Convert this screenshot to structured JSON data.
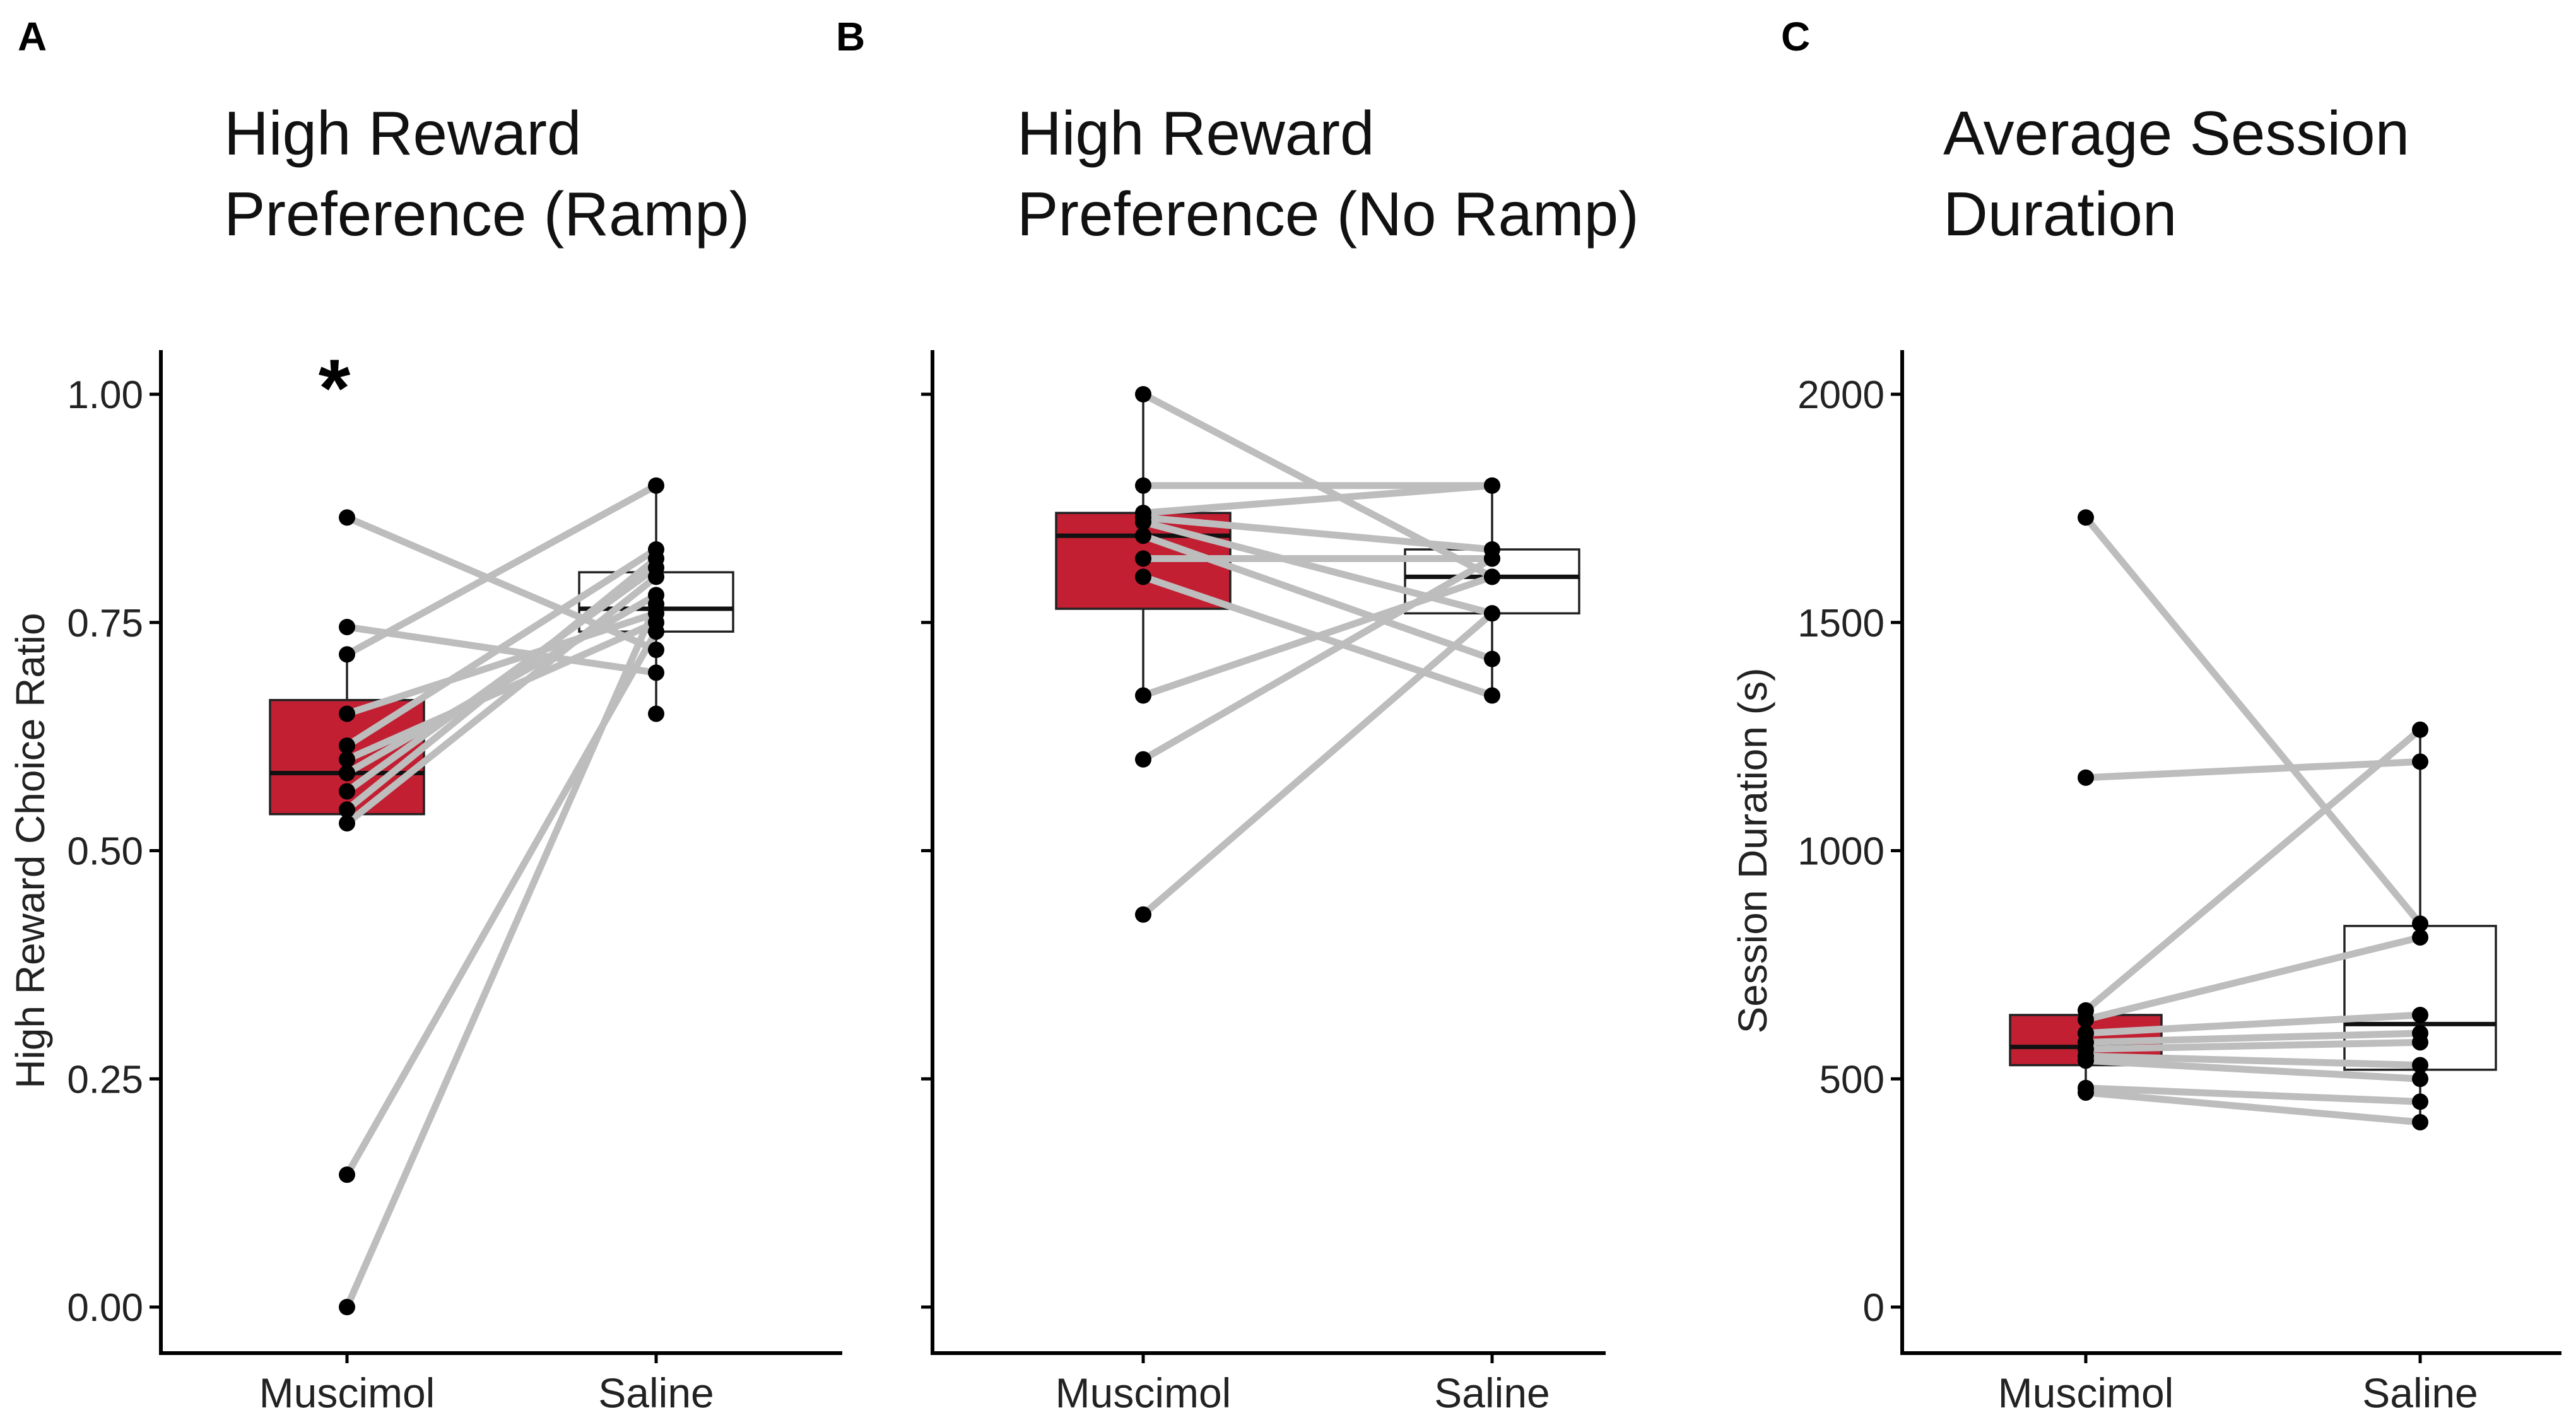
{
  "chart_data": [
    {
      "type": "box",
      "panel_label": "A",
      "title_lines": [
        "High Reward",
        "Preference (Ramp)"
      ],
      "ylabel": "High Reward Choice Ratio",
      "ylim": [
        0.0,
        1.0
      ],
      "yticks": [
        "0.00",
        "0.25",
        "0.50",
        "0.75",
        "1.00"
      ],
      "ytick_values": [
        0.0,
        0.25,
        0.5,
        0.75,
        1.0
      ],
      "categories": [
        "Muscimol",
        "Saline"
      ],
      "significance": "*",
      "boxes": [
        {
          "name": "Muscimol",
          "fill": "#c21f32",
          "q1": 0.54,
          "median": 0.585,
          "q3": 0.665,
          "whisker_low": 0.53,
          "whisker_high": 0.715
        },
        {
          "name": "Saline",
          "fill": "#ffffff",
          "q1": 0.74,
          "median": 0.765,
          "q3": 0.805,
          "whisker_low": 0.65,
          "whisker_high": 0.9
        }
      ],
      "pairs": [
        [
          0.0,
          0.77
        ],
        [
          0.145,
          0.74
        ],
        [
          0.53,
          0.8
        ],
        [
          0.545,
          0.82
        ],
        [
          0.565,
          0.81
        ],
        [
          0.585,
          0.78
        ],
        [
          0.6,
          0.75
        ],
        [
          0.615,
          0.83
        ],
        [
          0.65,
          0.76
        ],
        [
          0.715,
          0.9
        ],
        [
          0.745,
          0.695
        ],
        [
          0.865,
          0.72
        ]
      ],
      "extra_points": [
        {
          "group": "Saline",
          "value": 0.65
        }
      ]
    },
    {
      "type": "box",
      "panel_label": "B",
      "title_lines": [
        "High Reward",
        "Preference (No Ramp)"
      ],
      "ylabel": "",
      "ylim": [
        0.0,
        1.0
      ],
      "yticks": [
        "",
        "",
        "",
        "",
        ""
      ],
      "ytick_values": [
        0.0,
        0.25,
        0.5,
        0.75,
        1.0
      ],
      "categories": [
        "Muscimol",
        "Saline"
      ],
      "significance": "",
      "boxes": [
        {
          "name": "Muscimol",
          "fill": "#c21f32",
          "q1": 0.765,
          "median": 0.845,
          "q3": 0.87,
          "whisker_low": 0.67,
          "whisker_high": 1.0
        },
        {
          "name": "Saline",
          "fill": "#ffffff",
          "q1": 0.76,
          "median": 0.8,
          "q3": 0.83,
          "whisker_low": 0.67,
          "whisker_high": 0.9
        }
      ],
      "pairs": [
        [
          1.0,
          0.8
        ],
        [
          0.9,
          0.9
        ],
        [
          0.865,
          0.83
        ],
        [
          0.86,
          0.76
        ],
        [
          0.845,
          0.71
        ],
        [
          0.82,
          0.82
        ],
        [
          0.8,
          0.67
        ],
        [
          0.67,
          0.8
        ],
        [
          0.6,
          0.82
        ],
        [
          0.43,
          0.76
        ],
        [
          0.87,
          0.9
        ]
      ],
      "extra_points": []
    },
    {
      "type": "box",
      "panel_label": "C",
      "title_lines": [
        "Average Session",
        "Duration"
      ],
      "ylabel": "Session Duration (s)",
      "ylim": [
        0,
        2000
      ],
      "yticks": [
        "0",
        "500",
        "1000",
        "1500",
        "2000"
      ],
      "ytick_values": [
        0,
        500,
        1000,
        1500,
        2000
      ],
      "categories": [
        "Muscimol",
        "Saline"
      ],
      "significance": "",
      "boxes": [
        {
          "name": "Muscimol",
          "fill": "#c21f32",
          "q1": 530,
          "median": 570,
          "q3": 640,
          "whisker_low": 470,
          "whisker_high": 650
        },
        {
          "name": "Saline",
          "fill": "#ffffff",
          "q1": 520,
          "median": 620,
          "q3": 835,
          "whisker_low": 405,
          "whisker_high": 1265
        }
      ],
      "pairs": [
        [
          1730,
          840
        ],
        [
          1160,
          1195
        ],
        [
          650,
          1265
        ],
        [
          630,
          810
        ],
        [
          600,
          640
        ],
        [
          580,
          600
        ],
        [
          565,
          580
        ],
        [
          550,
          530
        ],
        [
          540,
          500
        ],
        [
          480,
          450
        ],
        [
          470,
          405
        ]
      ],
      "extra_points": []
    }
  ]
}
